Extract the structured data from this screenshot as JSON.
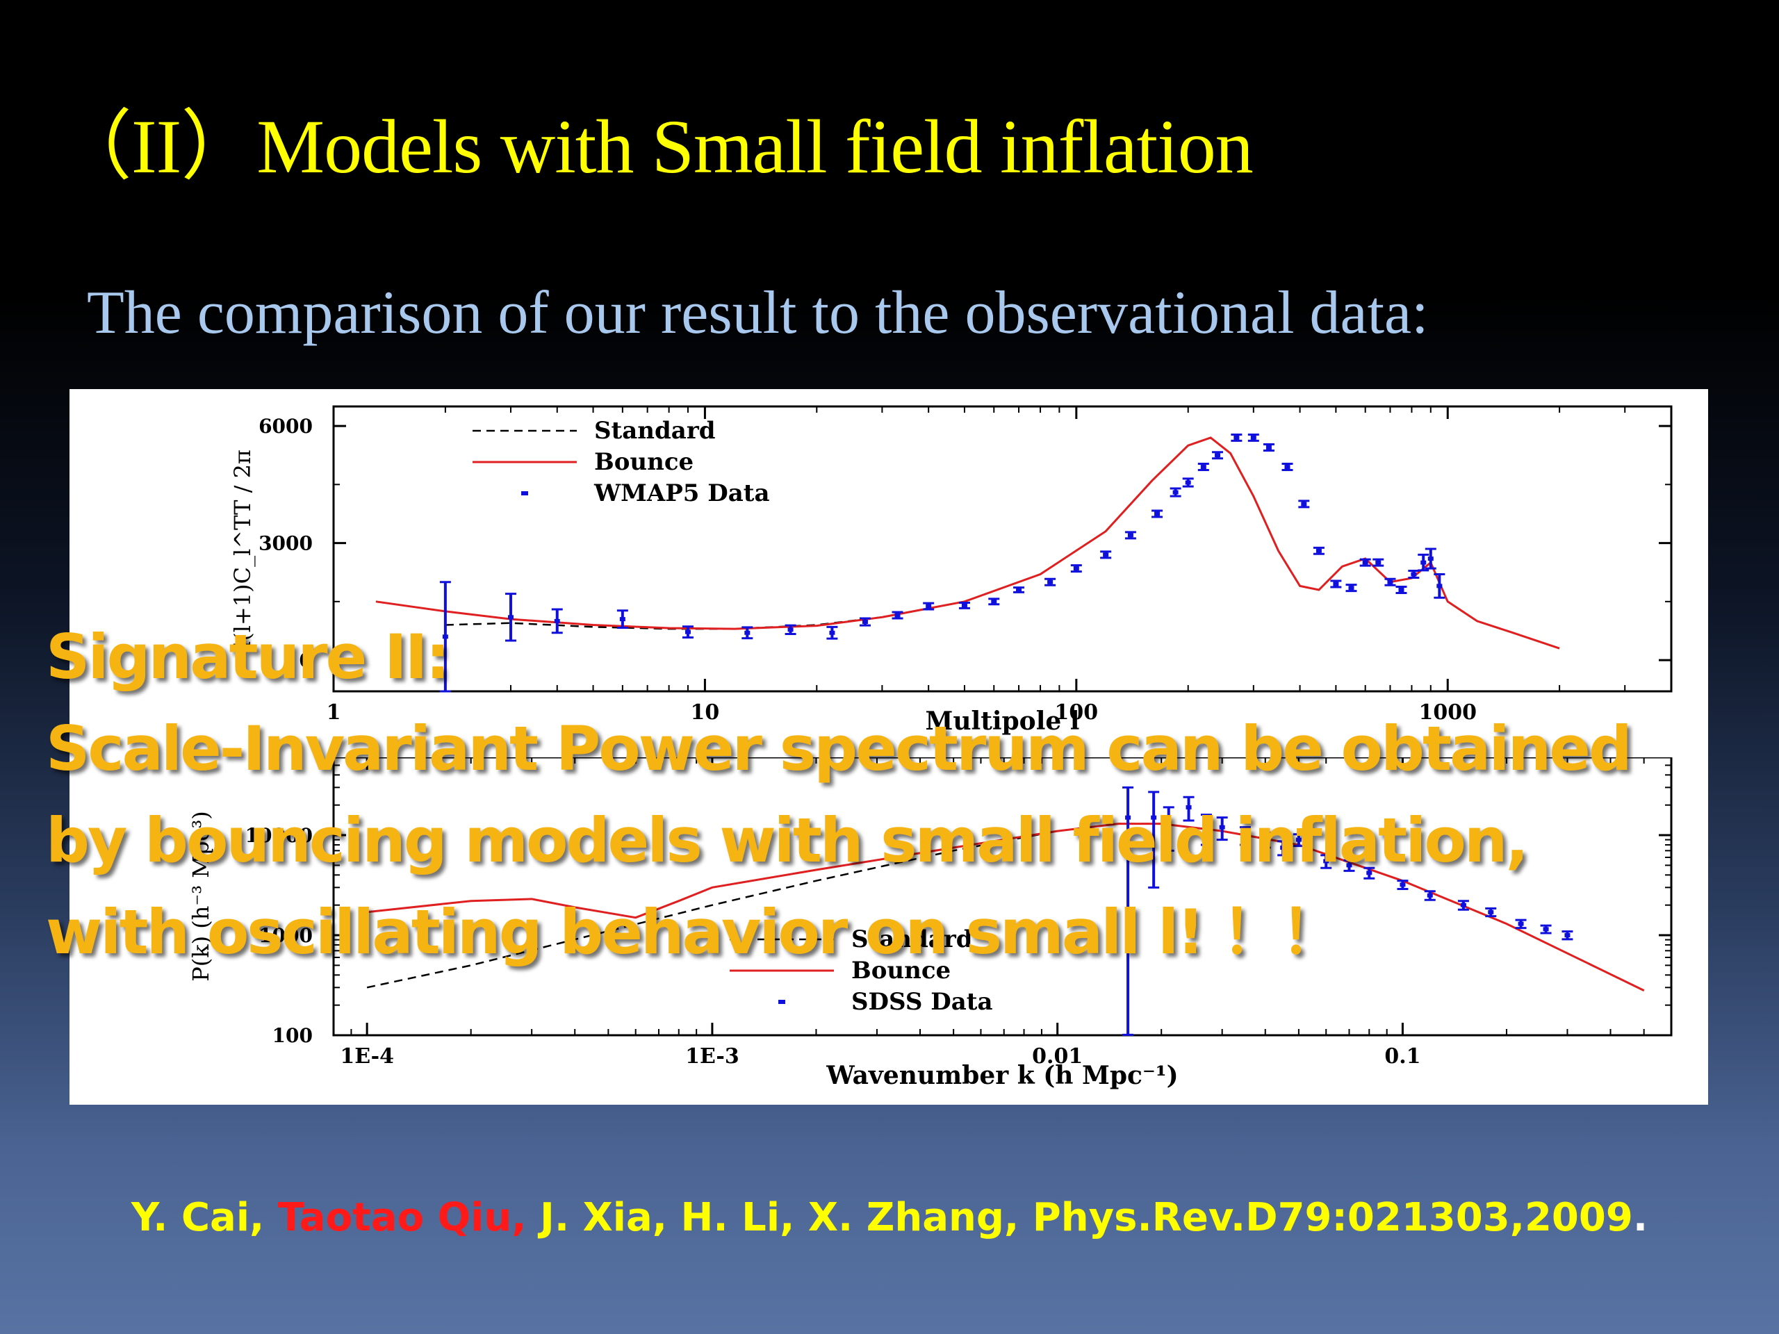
{
  "slide": {
    "title": "（II）Models with Small field inflation",
    "subtitle": "The comparison of our result to the observational data:",
    "overlay_lines": [
      "Signature II:",
      "Scale-Invariant Power spectrum can be obtained",
      "by bouncing models with small field inflation,",
      "with oscillating behavior on small l! ！！"
    ],
    "citation": {
      "part1": "Y. Cai, ",
      "highlight": "Taotao Qiu,",
      "part2": " J. Xia, H. Li, X. Zhang, Phys.Rev.D79:021303,2009",
      "end": "."
    }
  },
  "colors": {
    "title": "#ffff00",
    "subtitle": "#a9c8ee",
    "overlay": "#f5b412",
    "highlight": "#ff1a1a",
    "bounce_curve": "#e02020",
    "standard_curve": "#000000",
    "data_points": "#1010dd"
  },
  "chart_data": [
    {
      "type": "line",
      "xscale": "log",
      "xlabel": "Multipole l",
      "ylabel": "l(l+1)C_l^TT / 2π",
      "xlim": [
        1,
        4000
      ],
      "ylim": [
        -800,
        6500
      ],
      "xticks": [
        "1",
        "10",
        "100",
        "1000"
      ],
      "yticks": [
        "0",
        "3000",
        "6000"
      ],
      "legend": {
        "placement": "top-left",
        "entries": [
          "Standard",
          "Bounce",
          "WMAP5 Data"
        ]
      },
      "series": [
        {
          "name": "Standard",
          "style": "dashed",
          "x": [
            2,
            3,
            5,
            8,
            12,
            20,
            30,
            50,
            80,
            120,
            160,
            200,
            230,
            260,
            300,
            350,
            400,
            450,
            520,
            600,
            700,
            800,
            900,
            1000,
            1200,
            1500,
            2000
          ],
          "y": [
            900,
            950,
            850,
            800,
            800,
            900,
            1100,
            1500,
            2200,
            3300,
            4600,
            5500,
            5700,
            5300,
            4200,
            2800,
            1900,
            1800,
            2400,
            2600,
            2000,
            2100,
            2500,
            1500,
            1000,
            700,
            300
          ]
        },
        {
          "name": "Bounce",
          "style": "solid",
          "x": [
            1.3,
            2,
            3,
            5,
            8,
            12,
            20,
            30,
            50,
            80,
            120,
            160,
            200,
            230,
            260,
            300,
            350,
            400,
            450,
            520,
            600,
            700,
            800,
            900,
            1000,
            1200,
            1500,
            2000
          ],
          "y": [
            1500,
            1250,
            1050,
            900,
            820,
            800,
            880,
            1100,
            1500,
            2200,
            3300,
            4600,
            5500,
            5700,
            5300,
            4200,
            2800,
            1900,
            1800,
            2400,
            2600,
            2000,
            2100,
            2500,
            1500,
            1000,
            700,
            300
          ]
        },
        {
          "name": "WMAP5 Data",
          "style": "errorbar",
          "points": [
            [
              2,
              600,
              1400
            ],
            [
              3,
              1100,
              600
            ],
            [
              4,
              1000,
              300
            ],
            [
              6,
              1050,
              220
            ],
            [
              9,
              720,
              140
            ],
            [
              13,
              700,
              140
            ],
            [
              17,
              780,
              110
            ],
            [
              22,
              700,
              150
            ],
            [
              27,
              980,
              90
            ],
            [
              33,
              1150,
              80
            ],
            [
              40,
              1380,
              80
            ],
            [
              50,
              1400,
              70
            ],
            [
              60,
              1500,
              70
            ],
            [
              70,
              1800,
              60
            ],
            [
              85,
              2000,
              80
            ],
            [
              100,
              2350,
              80
            ],
            [
              120,
              2700,
              80
            ],
            [
              140,
              3200,
              80
            ],
            [
              165,
              3750,
              80
            ],
            [
              185,
              4300,
              100
            ],
            [
              200,
              4550,
              100
            ],
            [
              220,
              4950,
              80
            ],
            [
              240,
              5250,
              80
            ],
            [
              270,
              5700,
              80
            ],
            [
              300,
              5700,
              80
            ],
            [
              330,
              5450,
              80
            ],
            [
              370,
              4950,
              80
            ],
            [
              410,
              4000,
              80
            ],
            [
              450,
              2800,
              80
            ],
            [
              500,
              1950,
              80
            ],
            [
              550,
              1850,
              80
            ],
            [
              600,
              2500,
              80
            ],
            [
              650,
              2500,
              80
            ],
            [
              700,
              2000,
              80
            ],
            [
              750,
              1800,
              80
            ],
            [
              810,
              2200,
              90
            ],
            [
              860,
              2500,
              200
            ],
            [
              900,
              2600,
              250
            ],
            [
              950,
              1900,
              300
            ]
          ]
        }
      ]
    },
    {
      "type": "line",
      "xscale": "log",
      "yscale": "log",
      "xlabel": "Wavenumber k (h Mpc⁻¹)",
      "ylabel": "P(k) (h⁻³ Mpc³)",
      "xlim": [
        8e-05,
        0.6
      ],
      "ylim": [
        100,
        60000
      ],
      "xticks": [
        "1E-4",
        "1E-3",
        "0.01",
        "0.1"
      ],
      "yticks": [
        "100",
        "1000",
        "10000"
      ],
      "legend": {
        "placement": "center",
        "entries": [
          "Standard",
          "Bounce",
          "SDSS Data"
        ]
      },
      "series": [
        {
          "name": "Standard",
          "style": "dashed",
          "x": [
            0.0001,
            0.0002,
            0.0005,
            0.001,
            0.002,
            0.005,
            0.01,
            0.015,
            0.02,
            0.03,
            0.05,
            0.1,
            0.2,
            0.5
          ],
          "y": [
            300,
            500,
            1100,
            2000,
            3500,
            7000,
            11000,
            13000,
            13000,
            11000,
            8000,
            3500,
            1300,
            280
          ]
        },
        {
          "name": "Bounce",
          "style": "solid",
          "x": [
            0.0001,
            0.0002,
            0.0003,
            0.0004,
            0.0006,
            0.0008,
            0.001,
            0.002,
            0.005,
            0.01,
            0.015,
            0.02,
            0.03,
            0.05,
            0.1,
            0.2,
            0.5
          ],
          "y": [
            1700,
            2200,
            2300,
            1900,
            1500,
            2200,
            3000,
            4500,
            7500,
            11000,
            13000,
            13000,
            11000,
            8000,
            3500,
            1300,
            280
          ]
        },
        {
          "name": "SDSS Data",
          "style": "errorbar",
          "points": [
            [
              0.016,
              15000,
              15000
            ],
            [
              0.019,
              15000,
              12000
            ],
            [
              0.021,
              13000,
              6000
            ],
            [
              0.024,
              19000,
              5000
            ],
            [
              0.027,
              12000,
              4000
            ],
            [
              0.03,
              12000,
              3000
            ],
            [
              0.035,
              10000,
              2000
            ],
            [
              0.04,
              9000,
              1500
            ],
            [
              0.045,
              7500,
              1200
            ],
            [
              0.05,
              9000,
              1200
            ],
            [
              0.06,
              5500,
              800
            ],
            [
              0.07,
              5000,
              600
            ],
            [
              0.08,
              4200,
              500
            ],
            [
              0.1,
              3200,
              300
            ],
            [
              0.12,
              2500,
              250
            ],
            [
              0.15,
              2000,
              200
            ],
            [
              0.18,
              1700,
              150
            ],
            [
              0.22,
              1300,
              120
            ],
            [
              0.26,
              1150,
              100
            ],
            [
              0.3,
              1000,
              90
            ]
          ]
        }
      ]
    }
  ]
}
